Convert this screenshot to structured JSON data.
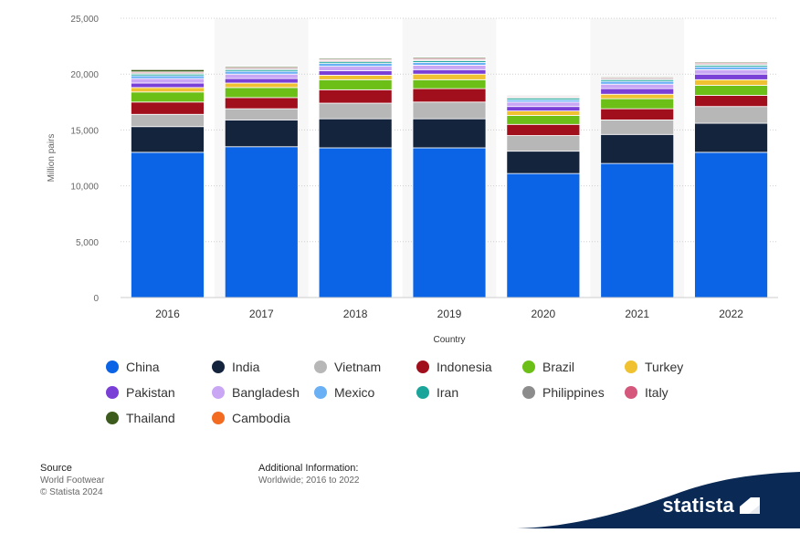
{
  "chart_data": {
    "type": "bar",
    "stacked": true,
    "xlabel": "Country",
    "ylabel": "Million pairs",
    "ylim": [
      0,
      25000
    ],
    "yticks": [
      "0",
      "5,000",
      "10,000",
      "15,000",
      "20,000",
      "25,000"
    ],
    "ytick_values": [
      0,
      5000,
      10000,
      15000,
      20000,
      25000
    ],
    "categories": [
      "2016",
      "2017",
      "2018",
      "2019",
      "2020",
      "2021",
      "2022"
    ],
    "grid": "horizontal dotted",
    "legend_placement": "bottom",
    "series": [
      {
        "name": "China",
        "color": "#0b63e5",
        "values": [
          13000,
          13500,
          13400,
          13400,
          11100,
          12000,
          13000
        ]
      },
      {
        "name": "India",
        "color": "#14243d",
        "values": [
          2300,
          2400,
          2600,
          2600,
          2000,
          2600,
          2600
        ]
      },
      {
        "name": "Vietnam",
        "color": "#b7b7b7",
        "values": [
          1100,
          1000,
          1400,
          1500,
          1400,
          1300,
          1500
        ]
      },
      {
        "name": "Indonesia",
        "color": "#a10f1c",
        "values": [
          1100,
          1000,
          1200,
          1200,
          1000,
          1000,
          1000
        ]
      },
      {
        "name": "Brazil",
        "color": "#6bbf17",
        "values": [
          900,
          900,
          900,
          800,
          800,
          900,
          900
        ]
      },
      {
        "name": "Turkey",
        "color": "#f0c130",
        "values": [
          400,
          400,
          400,
          500,
          400,
          400,
          500
        ]
      },
      {
        "name": "Pakistan",
        "color": "#7a3fd6",
        "values": [
          400,
          400,
          400,
          400,
          400,
          500,
          500
        ]
      },
      {
        "name": "Bangladesh",
        "color": "#c9a7f5",
        "values": [
          400,
          400,
          400,
          400,
          400,
          400,
          400
        ]
      },
      {
        "name": "Mexico",
        "color": "#6ab0f5",
        "values": [
          250,
          250,
          250,
          250,
          200,
          250,
          250
        ]
      },
      {
        "name": "Iran",
        "color": "#1aa59a",
        "values": [
          150,
          150,
          150,
          150,
          150,
          150,
          150
        ]
      },
      {
        "name": "Philippines",
        "color": "#8c8c8c",
        "values": [
          100,
          100,
          100,
          100,
          100,
          100,
          100
        ]
      },
      {
        "name": "Italy",
        "color": "#d5577c",
        "values": [
          100,
          100,
          100,
          100,
          80,
          90,
          100
        ]
      },
      {
        "name": "Thailand",
        "color": "#3d5b1c",
        "values": [
          200,
          100,
          100,
          100,
          70,
          80,
          100
        ]
      },
      {
        "name": "Cambodia",
        "color": "#f26b21",
        "values": [
          0,
          0,
          0,
          0,
          0,
          0,
          50
        ]
      }
    ]
  },
  "footer": {
    "source_title": "Source",
    "source_lines": [
      "World Footwear",
      "© Statista 2024"
    ],
    "info_title": "Additional Information:",
    "info_line": "Worldwide; 2016 to 2022"
  },
  "brand": {
    "name": "statista",
    "color": "#0a2a55"
  }
}
